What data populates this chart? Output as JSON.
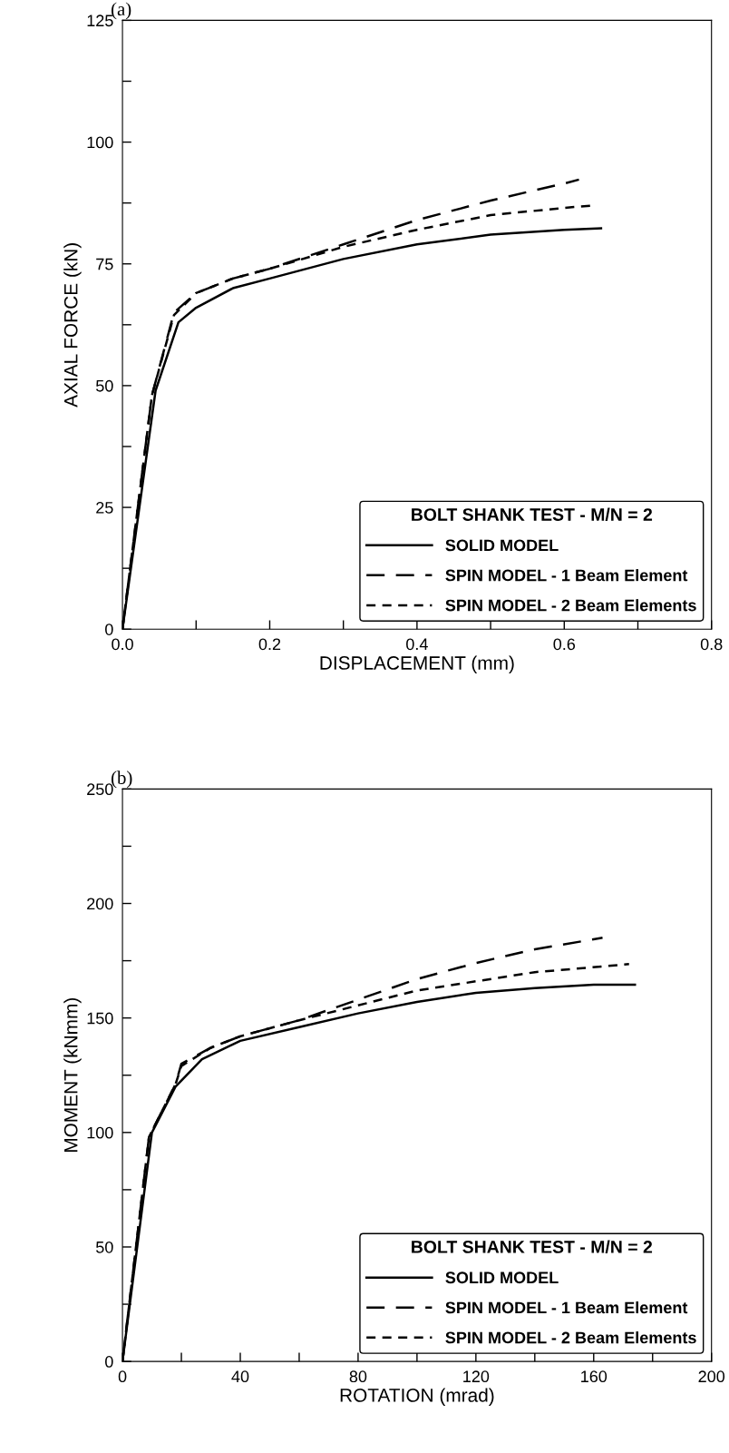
{
  "chart_data": [
    {
      "type": "line",
      "title": "(a)",
      "xlabel": "DISPLACEMENT (mm)",
      "ylabel": "AXIAL FORCE (kN)",
      "legend_title": "BOLT SHANK TEST - M/N = 2",
      "legend": "bottom right",
      "grid": false,
      "marker": "none",
      "xlim": [
        0,
        0.8
      ],
      "ylim": [
        0,
        125
      ],
      "xticks": [
        {
          "value": 0,
          "label": "0.0"
        },
        {
          "value": 0.1,
          "label": null
        },
        {
          "value": 0.2,
          "label": "0.2"
        },
        {
          "value": 0.3,
          "label": null
        },
        {
          "value": 0.4,
          "label": "0.4"
        },
        {
          "value": 0.5,
          "label": null
        },
        {
          "value": 0.6,
          "label": "0.6"
        },
        {
          "value": 0.7,
          "label": null
        },
        {
          "value": 0.8,
          "label": "0.8"
        }
      ],
      "yticks": [
        0,
        {
          "value": 12.5,
          "label": null
        },
        25,
        {
          "value": 37.5,
          "label": null
        },
        50,
        {
          "value": 62.5,
          "label": null
        },
        75,
        {
          "value": 87.5,
          "label": null
        },
        100,
        {
          "value": 112.5,
          "label": null
        },
        125
      ],
      "series": [
        {
          "name": "SOLID MODEL",
          "color": "#000000",
          "line_style": "solid",
          "x": [
            0,
            0.045,
            0.076,
            0.1,
            0.15,
            0.2,
            0.3,
            0.4,
            0.5,
            0.6,
            0.65
          ],
          "values": [
            0,
            49,
            63,
            66,
            70,
            72,
            76,
            79,
            81,
            82,
            82.3
          ]
        },
        {
          "name": "SPIN MODEL - 1 Beam Element",
          "color": "#000000",
          "line_style": "dashed",
          "x": [
            0,
            0.04,
            0.07,
            0.1,
            0.15,
            0.2,
            0.3,
            0.4,
            0.5,
            0.6,
            0.62
          ],
          "values": [
            0,
            48,
            65,
            69,
            72,
            74,
            79,
            84,
            88,
            91.5,
            92.3
          ]
        },
        {
          "name": "SPIN MODEL - 2 Beam Elements",
          "color": "#000000",
          "line_style": "dotted",
          "x": [
            0,
            0.04,
            0.07,
            0.1,
            0.15,
            0.2,
            0.3,
            0.4,
            0.5,
            0.6,
            0.64
          ],
          "values": [
            0,
            48,
            64.5,
            69,
            72,
            74,
            78.5,
            82,
            85,
            86.5,
            87
          ]
        }
      ]
    },
    {
      "type": "line",
      "title": "(b)",
      "xlabel": "ROTATION (mrad)",
      "ylabel": "MOMENT (kNmm)",
      "legend_title": "BOLT SHANK TEST - M/N = 2",
      "legend": "bottom right",
      "grid": false,
      "marker": "none",
      "xlim": [
        0,
        200
      ],
      "ylim": [
        0,
        250
      ],
      "xticks": [
        0,
        {
          "value": 20,
          "label": null
        },
        40,
        {
          "value": 60,
          "label": null
        },
        80,
        {
          "value": 100,
          "label": null
        },
        120,
        {
          "value": 140,
          "label": null
        },
        160,
        {
          "value": 180,
          "label": null
        },
        200
      ],
      "yticks": [
        0,
        {
          "value": 25,
          "label": null
        },
        50,
        {
          "value": 75,
          "label": null
        },
        100,
        {
          "value": 125,
          "label": null
        },
        150,
        {
          "value": 175,
          "label": null
        },
        200,
        {
          "value": 225,
          "label": null
        },
        250
      ],
      "series": [
        {
          "name": "SOLID MODEL",
          "color": "#000000",
          "line_style": "solid",
          "x": [
            0,
            10,
            18,
            27,
            40,
            60,
            80,
            100,
            120,
            140,
            160,
            174
          ],
          "values": [
            0,
            100,
            120,
            132,
            140,
            146,
            152,
            157,
            161,
            163,
            164.5,
            164.5
          ]
        },
        {
          "name": "SPIN MODEL - 1 Beam Element",
          "color": "#000000",
          "line_style": "dashed",
          "x": [
            0,
            9,
            18,
            20,
            30,
            40,
            60,
            80,
            100,
            120,
            140,
            163
          ],
          "values": [
            0,
            98,
            121,
            130,
            137,
            142,
            149,
            158,
            167,
            174,
            180,
            185
          ]
        },
        {
          "name": "SPIN MODEL - 2 Beam Elements",
          "color": "#000000",
          "line_style": "dotted",
          "x": [
            0,
            9,
            18,
            20,
            30,
            40,
            60,
            80,
            100,
            120,
            140,
            172
          ],
          "values": [
            0,
            98,
            121,
            129,
            137,
            142,
            149,
            155.5,
            162,
            166,
            170,
            173.5
          ]
        }
      ]
    }
  ]
}
